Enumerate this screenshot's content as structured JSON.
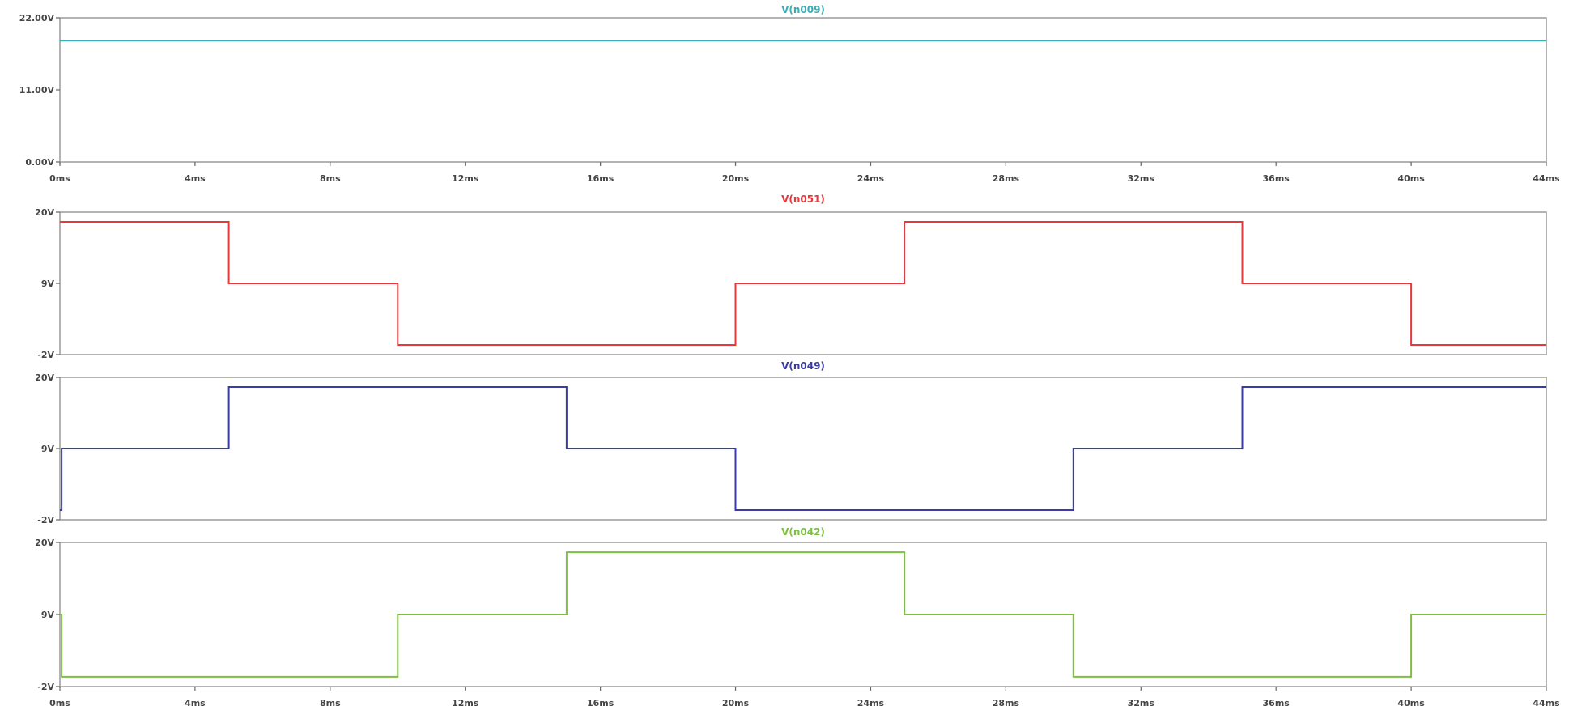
{
  "chart_data": [
    {
      "type": "line",
      "title": "V(n009)",
      "color": "#3aaeb4",
      "xlim": [
        0,
        44
      ],
      "ylim": [
        0,
        22
      ],
      "x_unit": "ms",
      "xticks": [
        0,
        4,
        8,
        12,
        16,
        20,
        24,
        28,
        32,
        36,
        40,
        44
      ],
      "xtick_labels": [
        "0ms",
        "4ms",
        "8ms",
        "12ms",
        "16ms",
        "20ms",
        "24ms",
        "28ms",
        "32ms",
        "36ms",
        "40ms",
        "44ms"
      ],
      "yticks": [
        0,
        11,
        22
      ],
      "ytick_labels": [
        "0.00V",
        "11.00V",
        "22.00V"
      ],
      "series": [
        {
          "x": [
            0,
            44
          ],
          "y": [
            18.5,
            18.5
          ]
        }
      ]
    },
    {
      "type": "line",
      "title": "V(n051)",
      "color": "#e8383d",
      "xlim": [
        0,
        44
      ],
      "ylim": [
        -2,
        20
      ],
      "x_unit": "ms",
      "yticks": [
        -2,
        9,
        20
      ],
      "ytick_labels": [
        "-2V",
        "9V",
        "20V"
      ],
      "series": [
        {
          "x": [
            0,
            5,
            5,
            10,
            10,
            20,
            20,
            25,
            25,
            35,
            35,
            40,
            40,
            44
          ],
          "y": [
            18.5,
            18.5,
            9,
            9,
            -0.5,
            -0.5,
            9,
            9,
            18.5,
            18.5,
            9,
            9,
            -0.5,
            -0.5
          ]
        }
      ]
    },
    {
      "type": "line",
      "title": "V(n049)",
      "color": "#3b3ba6",
      "xlim": [
        0,
        44
      ],
      "ylim": [
        -2,
        20
      ],
      "x_unit": "ms",
      "yticks": [
        -2,
        9,
        20
      ],
      "ytick_labels": [
        "-2V",
        "9V",
        "20V"
      ],
      "series": [
        {
          "x": [
            0,
            0.05,
            0.05,
            5,
            5,
            15,
            15,
            20,
            20,
            30,
            30,
            35,
            35,
            44
          ],
          "y": [
            -0.5,
            -0.5,
            9,
            9,
            18.5,
            18.5,
            9,
            9,
            -0.5,
            -0.5,
            9,
            9,
            18.5,
            18.5
          ]
        }
      ]
    },
    {
      "type": "line",
      "title": "V(n042)",
      "color": "#7fbf3f",
      "xlim": [
        0,
        44
      ],
      "ylim": [
        -2,
        20
      ],
      "x_unit": "ms",
      "xticks": [
        0,
        4,
        8,
        12,
        16,
        20,
        24,
        28,
        32,
        36,
        40,
        44
      ],
      "xtick_labels": [
        "0ms",
        "4ms",
        "8ms",
        "12ms",
        "16ms",
        "20ms",
        "24ms",
        "28ms",
        "32ms",
        "36ms",
        "40ms",
        "44ms"
      ],
      "yticks": [
        -2,
        9,
        20
      ],
      "ytick_labels": [
        "-2V",
        "9V",
        "20V"
      ],
      "series": [
        {
          "x": [
            0,
            0.05,
            0.05,
            10,
            10,
            15,
            15,
            25,
            25,
            30,
            30,
            40,
            40,
            44
          ],
          "y": [
            9,
            9,
            -0.5,
            -0.5,
            9,
            9,
            18.5,
            18.5,
            9,
            9,
            -0.5,
            -0.5,
            9,
            9
          ]
        }
      ]
    }
  ]
}
